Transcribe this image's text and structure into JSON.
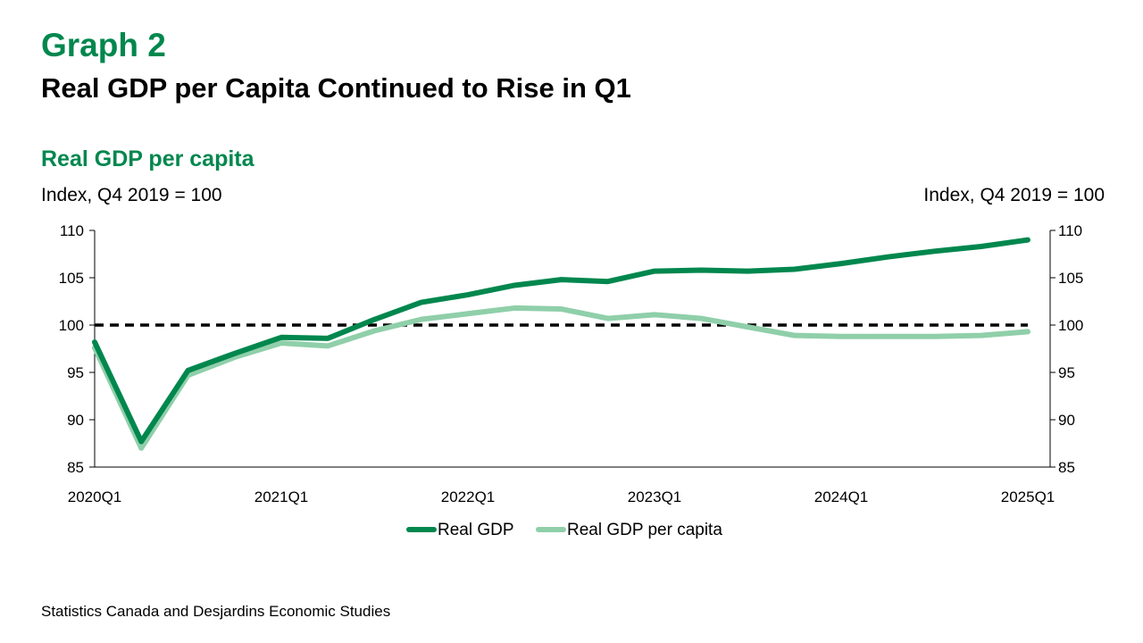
{
  "header": {
    "graph_label": "Graph 2",
    "headline": "Real GDP per Capita Continued to Rise in Q1"
  },
  "footer": {
    "source": "Statistics Canada and Desjardins Economic Studies"
  },
  "colors": {
    "title_green": "#00874e",
    "real_gdp": "#00874e",
    "real_gdp_per_capita": "#8fcfa9",
    "reference_line": "#000000"
  },
  "chart_data": {
    "type": "line",
    "title": "Real GDP per capita",
    "ylabel_left": "Index, Q4 2019 = 100",
    "ylabel_right": "Index, Q4 2019 = 100",
    "x": [
      "2020Q1",
      "2020Q2",
      "2020Q3",
      "2020Q4",
      "2021Q1",
      "2021Q2",
      "2021Q3",
      "2021Q4",
      "2022Q1",
      "2022Q2",
      "2022Q3",
      "2022Q4",
      "2023Q1",
      "2023Q2",
      "2023Q3",
      "2023Q4",
      "2024Q1",
      "2024Q2",
      "2024Q3",
      "2024Q4",
      "2025Q1"
    ],
    "x_tick_labels": [
      "2020Q1",
      "2021Q1",
      "2022Q1",
      "2023Q1",
      "2024Q1",
      "2025Q1"
    ],
    "ylim": [
      85,
      110
    ],
    "y_ticks": [
      85,
      90,
      95,
      100,
      105,
      110
    ],
    "reference_line": 100,
    "grid": false,
    "legend_position": "bottom",
    "series": [
      {
        "name": "Real GDP",
        "values": [
          98.2,
          87.7,
          95.2,
          97.0,
          98.7,
          98.6,
          100.6,
          102.4,
          103.2,
          104.2,
          104.8,
          104.6,
          105.7,
          105.8,
          105.7,
          105.9,
          106.5,
          107.2,
          107.8,
          108.3,
          109.0
        ]
      },
      {
        "name": "Real GDP per capita",
        "values": [
          97.6,
          87.0,
          94.7,
          96.6,
          98.1,
          97.8,
          99.4,
          100.6,
          101.2,
          101.8,
          101.7,
          100.7,
          101.1,
          100.7,
          99.8,
          98.9,
          98.8,
          98.8,
          98.8,
          98.9,
          99.3
        ]
      }
    ]
  }
}
